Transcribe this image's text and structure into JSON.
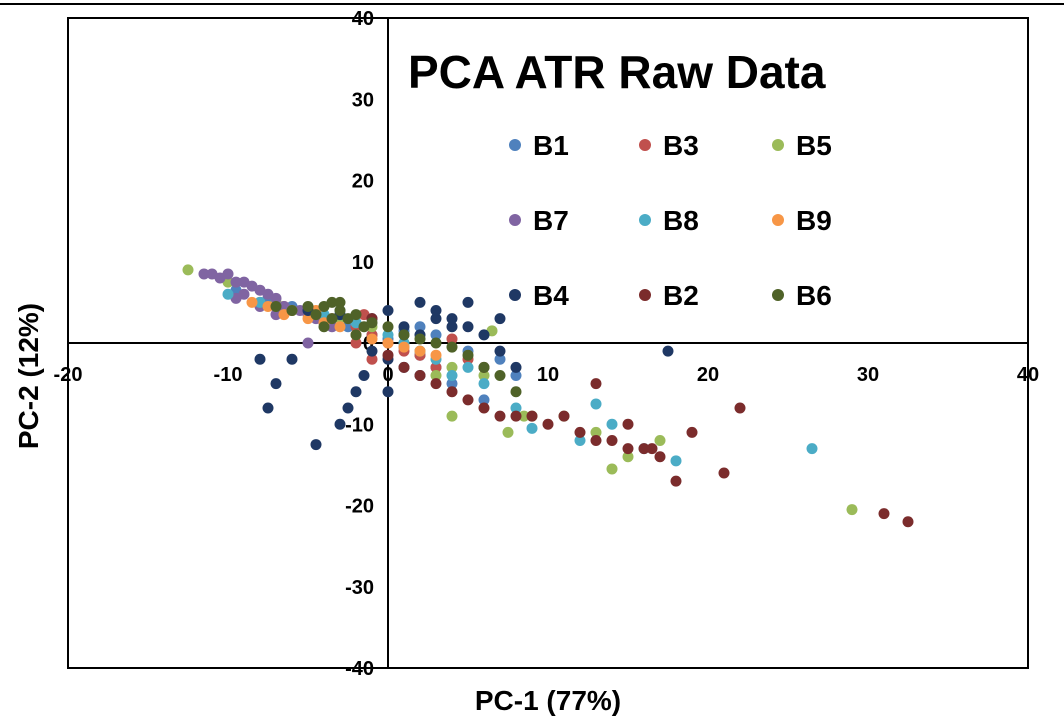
{
  "chart_data": {
    "type": "scatter",
    "title": "PCA ATR Raw Data",
    "xlabel": "PC-1 (77%)",
    "ylabel": "PC-2 (12%)",
    "xlim": [
      -20,
      40
    ],
    "ylim": [
      -40,
      40
    ],
    "xticks": [
      -20,
      -10,
      0,
      10,
      20,
      30,
      40
    ],
    "yticks": [
      -40,
      -30,
      -20,
      -10,
      0,
      10,
      20,
      30,
      40
    ],
    "x_tick_labels": [
      "-20",
      "-10",
      "0",
      "10",
      "20",
      "30",
      "40"
    ],
    "y_tick_labels": [
      "-40",
      "-30",
      "-20",
      "-10",
      "0",
      "10",
      "20",
      "30",
      "40"
    ],
    "grid": false,
    "legend_position": "top-right",
    "series": [
      {
        "name": "B1",
        "color": "#4f81bd",
        "points": [
          [
            -9.5,
            6.5
          ],
          [
            -7.5,
            5.5
          ],
          [
            -6,
            4.5
          ],
          [
            -4,
            3
          ],
          [
            -2.5,
            2
          ],
          [
            -1,
            1
          ],
          [
            0,
            0.5
          ],
          [
            1,
            -0.5
          ],
          [
            2,
            -1.5
          ],
          [
            3,
            -3
          ],
          [
            4,
            -5
          ],
          [
            6,
            -7
          ],
          [
            8,
            -4
          ],
          [
            7,
            -2
          ],
          [
            5,
            -1
          ],
          [
            3,
            1
          ],
          [
            2,
            2
          ],
          [
            1,
            1.5
          ],
          [
            -3,
            4
          ],
          [
            -5,
            4
          ]
        ]
      },
      {
        "name": "B3",
        "color": "#c0504d",
        "points": [
          [
            -8,
            5
          ],
          [
            -6.5,
            4.5
          ],
          [
            -5,
            4
          ],
          [
            -3.5,
            3
          ],
          [
            -2,
            2
          ],
          [
            -1,
            1
          ],
          [
            0,
            0
          ],
          [
            1,
            -1
          ],
          [
            2,
            -1.5
          ],
          [
            4,
            0.5
          ],
          [
            5,
            -2
          ],
          [
            -2,
            0
          ],
          [
            -1,
            -2
          ],
          [
            3,
            -3
          ],
          [
            -1.5,
            3.5
          ]
        ]
      },
      {
        "name": "B5",
        "color": "#9bbb59",
        "points": [
          [
            -12.5,
            9
          ],
          [
            -10,
            7.5
          ],
          [
            -7,
            5
          ],
          [
            -5,
            4
          ],
          [
            -3,
            3
          ],
          [
            -1,
            2
          ],
          [
            1,
            0
          ],
          [
            2,
            -1
          ],
          [
            4,
            -3
          ],
          [
            4,
            -9
          ],
          [
            6.5,
            1.5
          ],
          [
            7.5,
            -11
          ],
          [
            8.5,
            -9
          ],
          [
            9,
            -9
          ],
          [
            11,
            -9
          ],
          [
            13,
            -11
          ],
          [
            14,
            -15.5
          ],
          [
            15,
            -14
          ],
          [
            17,
            -12
          ],
          [
            29,
            -20.5
          ],
          [
            3,
            -4
          ],
          [
            6,
            -4
          ]
        ]
      },
      {
        "name": "B7",
        "color": "#8064a2",
        "points": [
          [
            -11.5,
            8.5
          ],
          [
            -11,
            8.5
          ],
          [
            -10.5,
            8
          ],
          [
            -10,
            8.5
          ],
          [
            -9.5,
            7.5
          ],
          [
            -9,
            7.5
          ],
          [
            -8.5,
            7
          ],
          [
            -8,
            6.5
          ],
          [
            -7.5,
            6
          ],
          [
            -7,
            5.5
          ],
          [
            -9,
            6
          ],
          [
            -9.5,
            5.5
          ],
          [
            -6.5,
            4.5
          ],
          [
            -5.5,
            4
          ],
          [
            -5,
            3.5
          ],
          [
            -4.5,
            3
          ],
          [
            -4,
            2.5
          ],
          [
            -3.5,
            2
          ],
          [
            -8,
            4.5
          ],
          [
            -7,
            3.5
          ],
          [
            -5,
            0
          ]
        ]
      },
      {
        "name": "B8",
        "color": "#4bacc6",
        "points": [
          [
            -10,
            6
          ],
          [
            -8,
            5
          ],
          [
            -6,
            4
          ],
          [
            -4,
            3.5
          ],
          [
            -2,
            2.5
          ],
          [
            0,
            1
          ],
          [
            1,
            0
          ],
          [
            2,
            -1
          ],
          [
            3,
            -2
          ],
          [
            4,
            -4
          ],
          [
            6,
            -5
          ],
          [
            8,
            -8
          ],
          [
            9,
            -10.5
          ],
          [
            12,
            -12
          ],
          [
            13,
            -7.5
          ],
          [
            14,
            -10
          ],
          [
            16,
            -13
          ],
          [
            18,
            -14.5
          ],
          [
            26.5,
            -13
          ],
          [
            5,
            -3
          ]
        ]
      },
      {
        "name": "B9",
        "color": "#f79646",
        "points": [
          [
            -8.5,
            5
          ],
          [
            -7.5,
            4.5
          ],
          [
            -6,
            4
          ],
          [
            -5,
            3
          ],
          [
            -4,
            2.5
          ],
          [
            -3,
            2
          ],
          [
            -2,
            1
          ],
          [
            -1,
            0.5
          ],
          [
            0,
            0
          ],
          [
            1,
            -0.5
          ],
          [
            2,
            -1
          ],
          [
            3,
            -1.5
          ],
          [
            -4.5,
            4
          ],
          [
            -6.5,
            3.5
          ]
        ]
      },
      {
        "name": "B4",
        "color": "#1f3864",
        "points": [
          [
            -5,
            4
          ],
          [
            -3,
            3.5
          ],
          [
            -1,
            3
          ],
          [
            0,
            4
          ],
          [
            1,
            2
          ],
          [
            2,
            1
          ],
          [
            3,
            3
          ],
          [
            4,
            2
          ],
          [
            5,
            2
          ],
          [
            6,
            1
          ],
          [
            7,
            -1
          ],
          [
            8,
            -3
          ],
          [
            -1,
            -1
          ],
          [
            0,
            -2
          ],
          [
            1,
            -3
          ],
          [
            2,
            -4
          ],
          [
            -1.5,
            -4
          ],
          [
            -2,
            -6
          ],
          [
            -2.5,
            -8
          ],
          [
            -3,
            -10
          ],
          [
            -6,
            -2
          ],
          [
            -7,
            -5
          ],
          [
            -7.5,
            -8
          ],
          [
            -4.5,
            -12.5
          ],
          [
            -8,
            -2
          ],
          [
            2,
            5
          ],
          [
            3,
            4
          ],
          [
            4,
            3
          ],
          [
            5,
            5
          ],
          [
            7,
            3
          ],
          [
            17.5,
            -1
          ],
          [
            0,
            -6
          ],
          [
            1,
            1
          ]
        ]
      },
      {
        "name": "B2",
        "color": "#7b2c2c",
        "points": [
          [
            -1,
            3
          ],
          [
            0,
            -1.5
          ],
          [
            1,
            -3
          ],
          [
            2,
            -4
          ],
          [
            3,
            -5
          ],
          [
            4,
            -6
          ],
          [
            5,
            -7
          ],
          [
            6,
            -8
          ],
          [
            7,
            -9
          ],
          [
            8,
            -9
          ],
          [
            9,
            -9
          ],
          [
            10,
            -10
          ],
          [
            11,
            -9
          ],
          [
            12,
            -11
          ],
          [
            13,
            -12
          ],
          [
            14,
            -12
          ],
          [
            15,
            -13
          ],
          [
            16,
            -13
          ],
          [
            17,
            -14
          ],
          [
            18,
            -17
          ],
          [
            19,
            -11
          ],
          [
            21,
            -16
          ],
          [
            22,
            -8
          ],
          [
            31,
            -21
          ],
          [
            32.5,
            -22
          ],
          [
            13,
            -5
          ],
          [
            6,
            -3
          ],
          [
            15,
            -10
          ],
          [
            16.5,
            -13
          ]
        ]
      },
      {
        "name": "B6",
        "color": "#4f6228",
        "points": [
          [
            -7,
            4.5
          ],
          [
            -6,
            4
          ],
          [
            -5,
            4.5
          ],
          [
            -4.5,
            3.5
          ],
          [
            -4,
            4.5
          ],
          [
            -3.5,
            5
          ],
          [
            -3,
            4
          ],
          [
            -2.5,
            3
          ],
          [
            -2,
            3.5
          ],
          [
            -1.5,
            2
          ],
          [
            -1,
            2.5
          ],
          [
            0,
            2
          ],
          [
            1,
            1
          ],
          [
            2,
            0.5
          ],
          [
            3,
            0
          ],
          [
            4,
            -0.5
          ],
          [
            5,
            -1.5
          ],
          [
            6,
            -3
          ],
          [
            7,
            -4
          ],
          [
            8,
            -6
          ],
          [
            -3,
            5
          ],
          [
            -2,
            1
          ],
          [
            -4,
            2
          ],
          [
            -3.5,
            3
          ]
        ]
      }
    ]
  }
}
